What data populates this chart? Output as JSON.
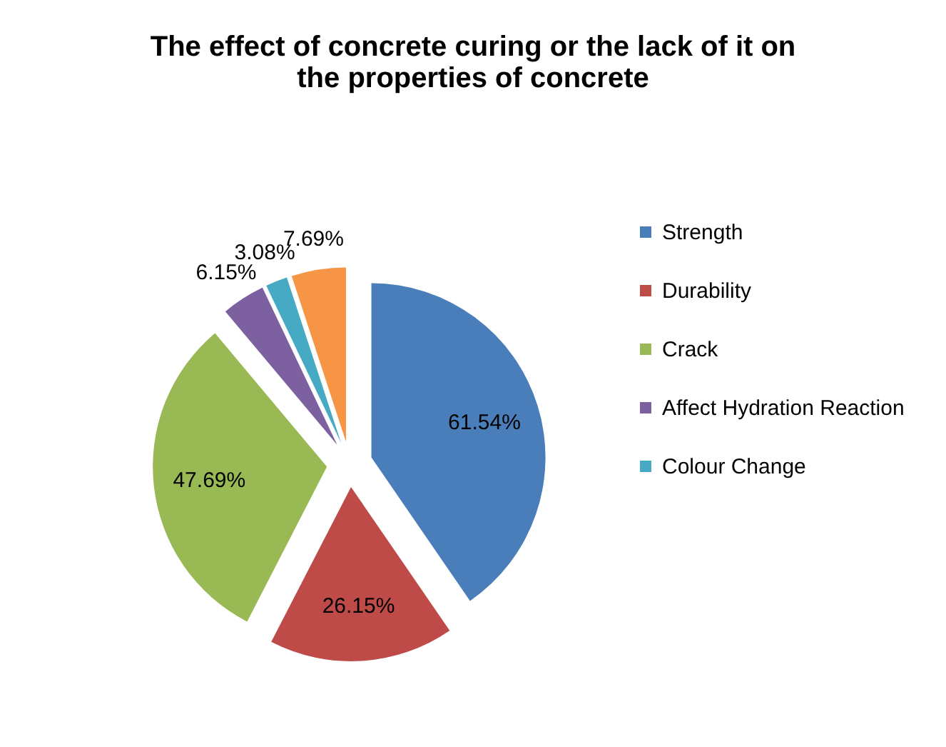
{
  "chart_data": {
    "type": "pie",
    "title": "The effect of concrete curing or the lack of it on the properties of concrete",
    "categories": [
      "Strength",
      "Durability",
      "Crack",
      "Affect Hydration Reaction",
      "Colour Change",
      null
    ],
    "values": [
      61.54,
      26.15,
      47.69,
      6.15,
      3.08,
      7.69
    ],
    "value_labels": [
      "61.54%",
      "26.15%",
      "47.69%",
      "6.15%",
      "3.08%",
      "7.69%"
    ],
    "colors": [
      "#4a7ebb",
      "#be4b48",
      "#98b954",
      "#7d60a0",
      "#46aac5",
      "#f69546"
    ],
    "legend": "right"
  }
}
